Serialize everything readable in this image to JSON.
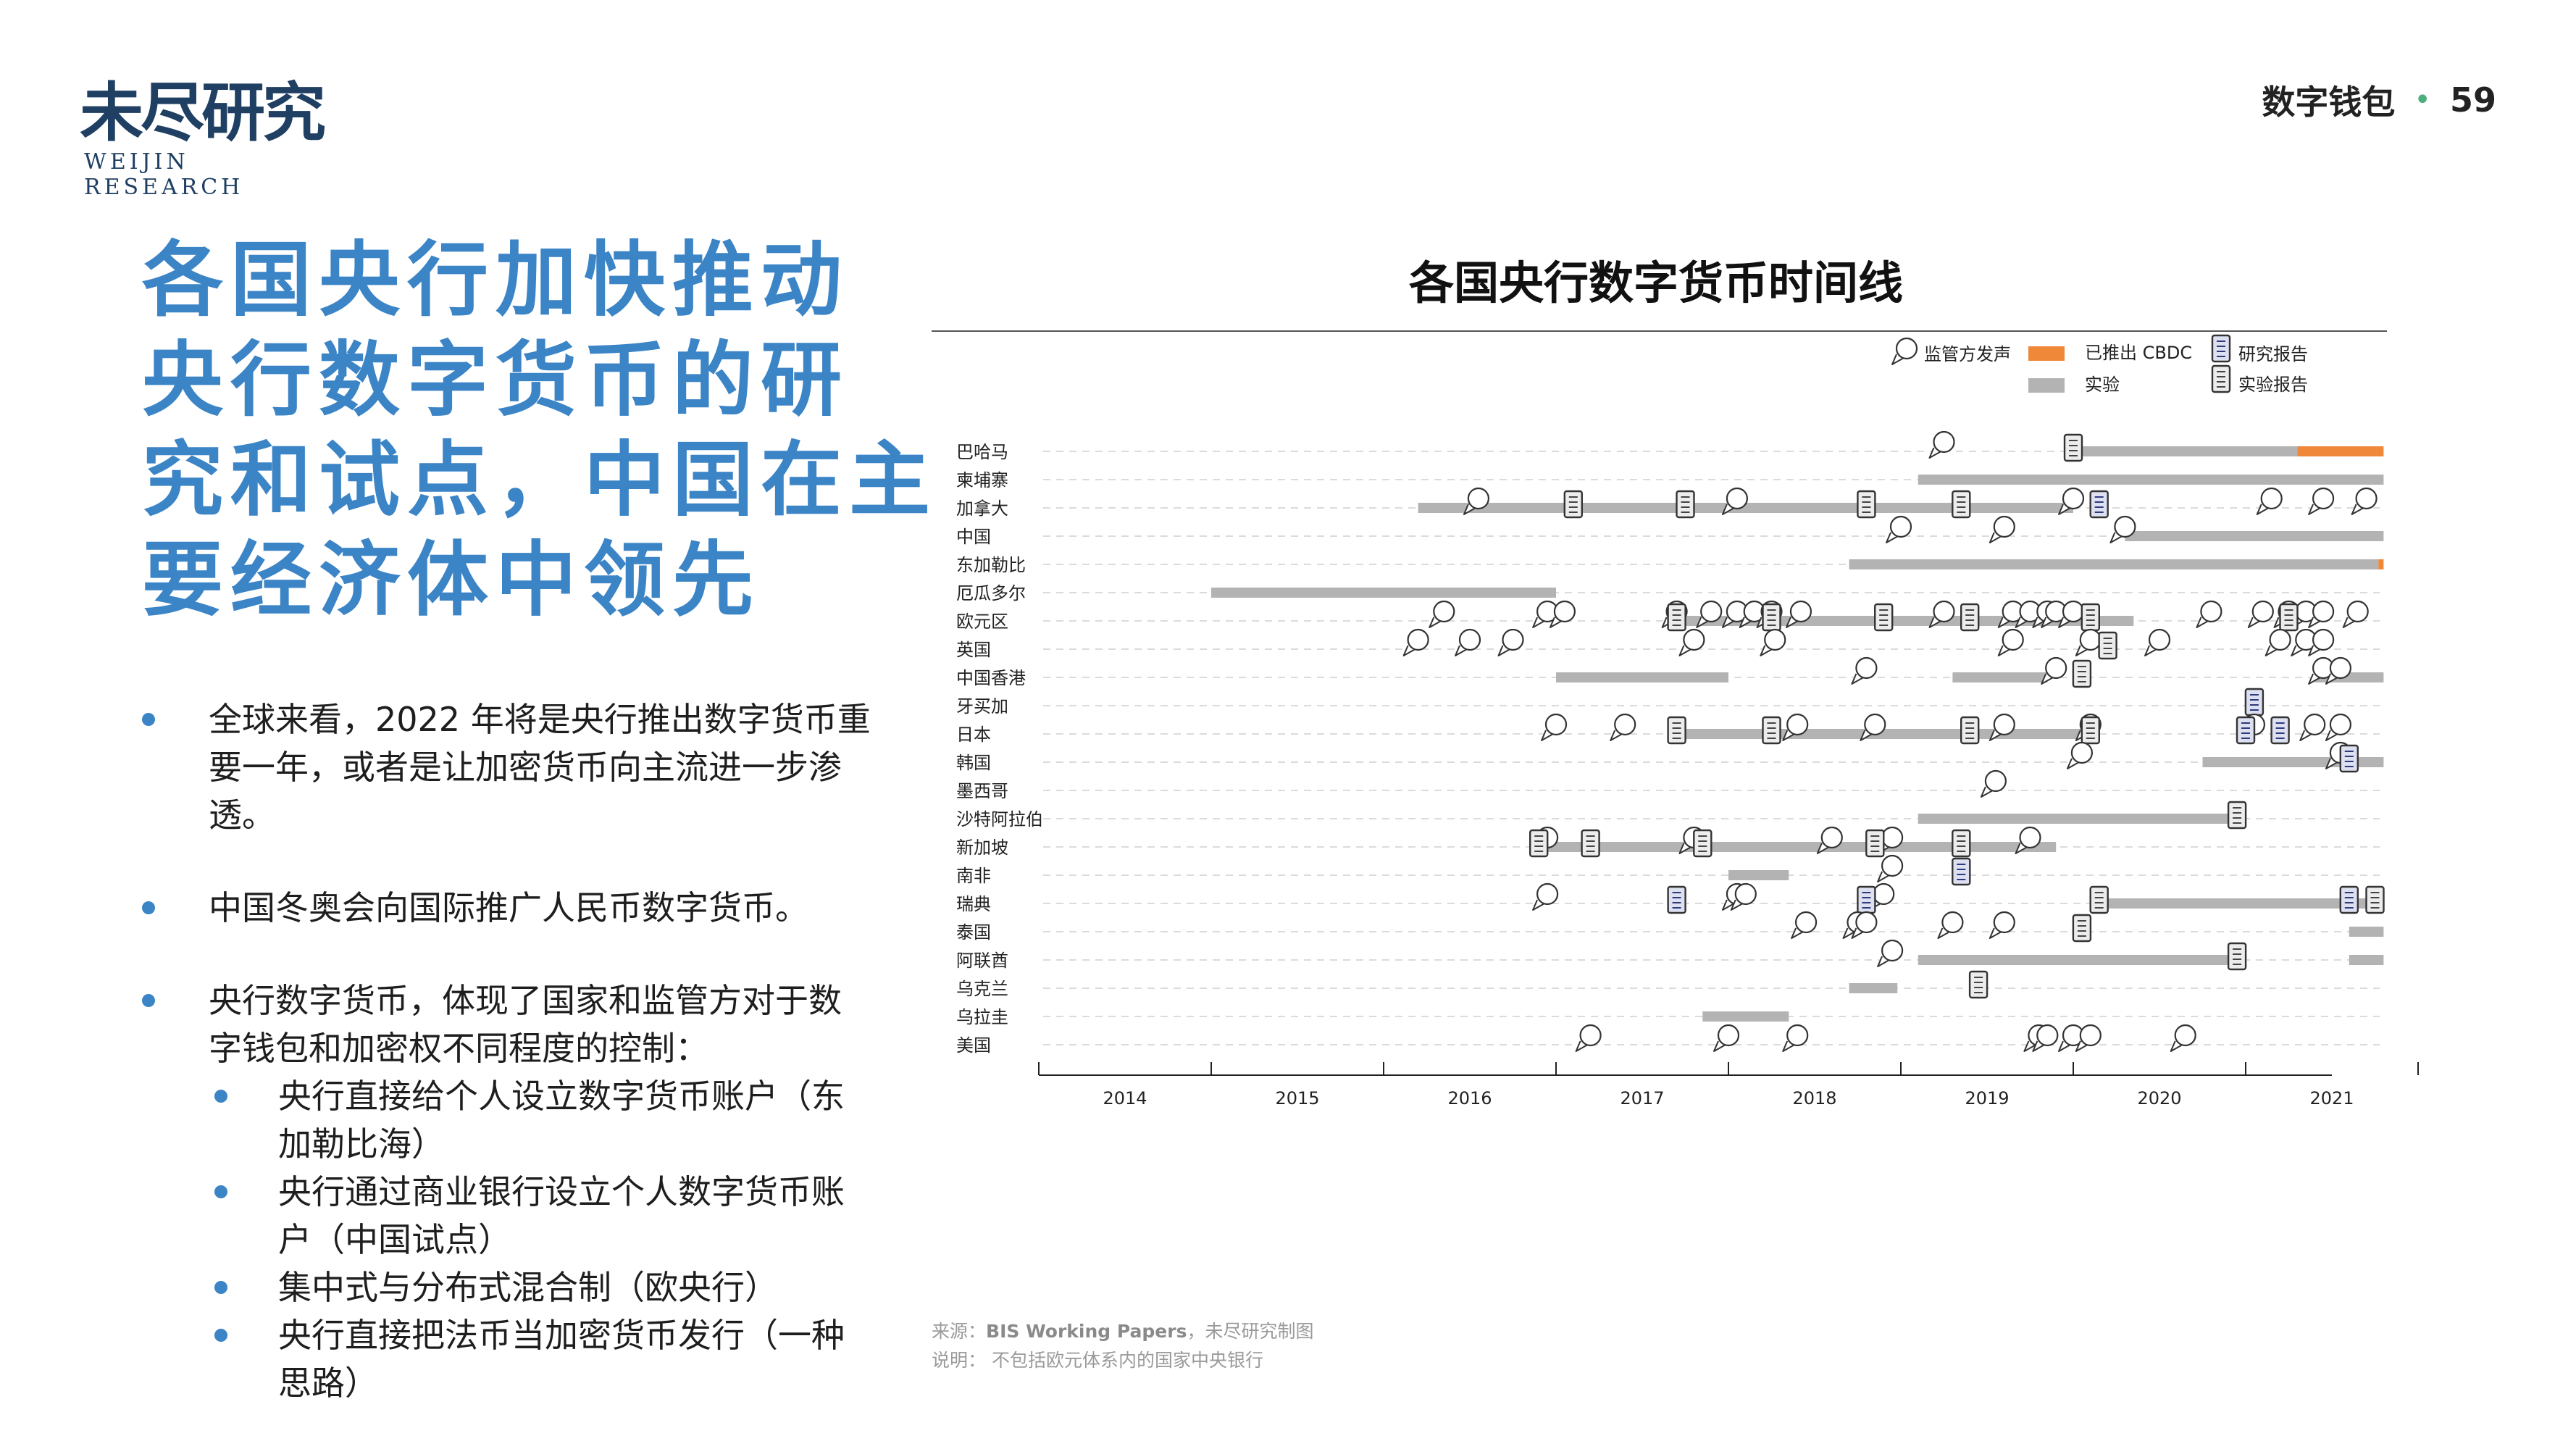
{
  "brand": {
    "name_cn": "未尽研究",
    "name_en": "WEIJIN RESEARCH"
  },
  "header": {
    "section": "数字钱包",
    "page_number": "59"
  },
  "headline": [
    "各国央行加快推动",
    "央行数字货币的研",
    "究和试点，中国在主",
    "要经济体中领先"
  ],
  "bullets": [
    {
      "text": "全球来看，2022 年将是央行推出数字货币重要一年，或者是让加密货币向主流进一步渗透。"
    },
    {
      "text": "中国冬奥会向国际推广人民币数字货币。"
    },
    {
      "text": "央行数字货币，体现了国家和监管方对于数字钱包和加密权不同程度的控制：",
      "sub": [
        "央行直接给个人设立数字货币账户（东加勒比海）",
        "央行通过商业银行设立个人数字货币账户（中国试点）",
        "集中式与分布式混合制（欧央行）",
        "央行直接把法币当加密货币发行（一种思路）"
      ]
    }
  ],
  "notes": {
    "source_label": "来源：",
    "source_bold": "BIS Working Papers",
    "source_rest": "，未尽研究制图",
    "note": "说明：  不包括欧元体系内的国家中央银行"
  },
  "colors": {
    "accent": "#3b84c6",
    "launched": "#f0883a",
    "experiment": "#b3b3b3",
    "brand": "#1f3f63"
  },
  "chart_data": {
    "type": "timeline",
    "title": "各国央行数字货币时间线",
    "xlim": [
      2013.5,
      2021
    ],
    "x_ticks": [
      2014,
      2015,
      2016,
      2017,
      2018,
      2019,
      2020,
      2021
    ],
    "legend": [
      {
        "key": "speech",
        "label": "监管方发声",
        "icon": "speech-bubble-icon"
      },
      {
        "key": "launched",
        "label": "已推出 CBDC",
        "icon": "orange-bar"
      },
      {
        "key": "research",
        "label": "研究报告",
        "icon": "research-report-icon"
      },
      {
        "key": "experiment",
        "label": "实验",
        "icon": "gray-bar"
      },
      {
        "key": "pilot",
        "label": "实验报告",
        "icon": "pilot-report-icon"
      }
    ],
    "countries": [
      {
        "name": "巴哈马",
        "experiment": [
          [
            2019.55,
            2020.8
          ]
        ],
        "launched": [
          [
            2020.8,
            2021.3
          ]
        ],
        "speech": [
          2018.75
        ],
        "pilot": [
          2019.5
        ],
        "research": []
      },
      {
        "name": "柬埔寨",
        "experiment": [
          [
            2018.6,
            2021.3
          ]
        ],
        "launched": [],
        "speech": [],
        "pilot": [],
        "research": []
      },
      {
        "name": "加拿大",
        "experiment": [
          [
            2015.7,
            2019.5
          ]
        ],
        "launched": [],
        "speech": [
          2016.05,
          2017.55,
          2019.5,
          2020.65,
          2020.95,
          2021.2
        ],
        "pilot": [
          2016.6,
          2017.25,
          2018.3,
          2018.85
        ],
        "research": [
          2019.65
        ]
      },
      {
        "name": "中国",
        "experiment": [
          [
            2019.8,
            2021.3
          ]
        ],
        "launched": [],
        "speech": [
          2018.5,
          2019.1,
          2019.8
        ],
        "pilot": [],
        "research": []
      },
      {
        "name": "东加勒比",
        "experiment": [
          [
            2018.2,
            2021.27
          ]
        ],
        "launched": [
          [
            2021.27,
            2021.3
          ]
        ],
        "speech": [],
        "pilot": [],
        "research": []
      },
      {
        "name": "厄瓜多尔",
        "experiment": [
          [
            2014.5,
            2016.5
          ]
        ],
        "launched": [],
        "speech": [],
        "pilot": [],
        "research": []
      },
      {
        "name": "欧元区",
        "experiment": [
          [
            2017.2,
            2019.85
          ]
        ],
        "launched": [],
        "speech": [
          2015.85,
          2016.45,
          2016.55,
          2017.2,
          2017.4,
          2017.55,
          2017.65,
          2017.75,
          2017.92,
          2018.75,
          2019.15,
          2019.25,
          2019.35,
          2019.4,
          2019.5,
          2020.3,
          2020.6,
          2020.75,
          2020.85,
          2020.95,
          2021.15
        ],
        "pilot": [
          2017.2,
          2017.75,
          2018.4,
          2018.9,
          2019.6,
          2020.75
        ],
        "research": []
      },
      {
        "name": "英国",
        "experiment": [],
        "launched": [],
        "speech": [
          2015.7,
          2016.0,
          2016.25,
          2017.3,
          2017.77,
          2019.15,
          2019.6,
          2020.0,
          2020.7,
          2020.85,
          2020.95
        ],
        "pilot": [
          2019.7
        ],
        "research": []
      },
      {
        "name": "中国香港",
        "experiment": [
          [
            2016.5,
            2017.5
          ],
          [
            2018.8,
            2019.35
          ],
          [
            2020.9,
            2021.3
          ]
        ],
        "launched": [],
        "speech": [
          2018.3,
          2019.4,
          2020.95,
          2021.05
        ],
        "pilot": [
          2019.55
        ],
        "research": []
      },
      {
        "name": "牙买加",
        "experiment": [],
        "launched": [],
        "speech": [],
        "pilot": [],
        "research": [
          2020.55
        ]
      },
      {
        "name": "日本",
        "experiment": [
          [
            2017.2,
            2019.55
          ]
        ],
        "launched": [],
        "speech": [
          2016.5,
          2016.9,
          2017.9,
          2018.35,
          2019.1,
          2019.6,
          2020.55,
          2020.9,
          2021.05
        ],
        "pilot": [
          2017.2,
          2017.75,
          2018.9,
          2019.6
        ],
        "research": [
          2020.5,
          2020.7
        ]
      },
      {
        "name": "韩国",
        "experiment": [
          [
            2020.25,
            2021.3
          ]
        ],
        "launched": [],
        "speech": [
          2019.55,
          2021.05
        ],
        "pilot": [],
        "research": [
          2021.1
        ]
      },
      {
        "name": "墨西哥",
        "experiment": [],
        "launched": [],
        "speech": [
          2019.05
        ],
        "pilot": [],
        "research": []
      },
      {
        "name": "沙特阿拉伯",
        "experiment": [
          [
            2018.6,
            2020.45
          ]
        ],
        "launched": [],
        "speech": [],
        "pilot": [
          2020.45
        ],
        "research": []
      },
      {
        "name": "新加坡",
        "experiment": [
          [
            2016.4,
            2019.4
          ]
        ],
        "launched": [],
        "speech": [
          2016.45,
          2017.3,
          2018.1,
          2018.45,
          2019.25
        ],
        "pilot": [
          2016.4,
          2016.7,
          2017.35,
          2018.35,
          2018.85
        ],
        "research": []
      },
      {
        "name": "南非",
        "experiment": [
          [
            2017.5,
            2017.85
          ]
        ],
        "launched": [],
        "speech": [
          2018.45
        ],
        "pilot": [],
        "research": [
          2018.85
        ]
      },
      {
        "name": "瑞典",
        "experiment": [
          [
            2019.65,
            2021.3
          ]
        ],
        "launched": [],
        "speech": [
          2016.45,
          2017.55,
          2017.6,
          2018.4
        ],
        "pilot": [
          2019.65,
          2021.25
        ],
        "research": [
          2017.2,
          2018.3,
          2021.1
        ]
      },
      {
        "name": "泰国",
        "experiment": [
          [
            2021.1,
            2021.3
          ]
        ],
        "launched": [],
        "speech": [
          2017.95,
          2018.25,
          2018.3,
          2018.8,
          2019.1
        ],
        "pilot": [
          2019.55
        ],
        "research": []
      },
      {
        "name": "阿联酋",
        "experiment": [
          [
            2018.6,
            2020.45
          ],
          [
            2021.1,
            2021.3
          ]
        ],
        "launched": [],
        "speech": [
          2018.45
        ],
        "pilot": [
          2020.45
        ],
        "research": []
      },
      {
        "name": "乌克兰",
        "experiment": [
          [
            2018.2,
            2018.48
          ]
        ],
        "launched": [],
        "speech": [],
        "pilot": [
          2018.95
        ],
        "research": []
      },
      {
        "name": "乌拉圭",
        "experiment": [
          [
            2017.35,
            2017.85
          ]
        ],
        "launched": [],
        "speech": [],
        "pilot": [],
        "research": []
      },
      {
        "name": "美国",
        "experiment": [],
        "launched": [],
        "speech": [
          2016.7,
          2017.5,
          2017.9,
          2019.3,
          2019.35,
          2019.5,
          2019.6,
          2020.15
        ],
        "pilot": [],
        "research": []
      }
    ]
  }
}
